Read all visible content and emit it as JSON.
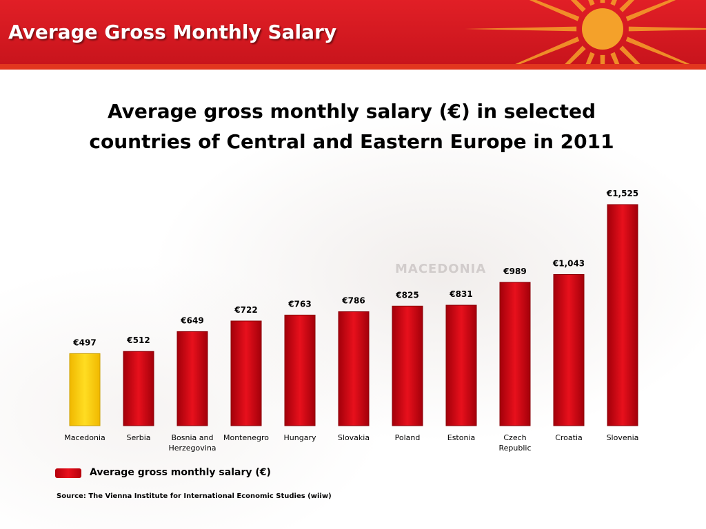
{
  "header": {
    "title": "Average Gross Monthly Salary"
  },
  "colors": {
    "header_red": "#d51920",
    "bar_red": "#d80510",
    "highlight_yellow": "#ffcc00",
    "sun_orange": "#f4a12a"
  },
  "chart_data": {
    "type": "bar",
    "title": "Average gross monthly salary (€) in selected countries of Central and Eastern Europe in 2011",
    "title_lines": [
      "Average gross monthly salary (€) in selected",
      "countries of Central and Eastern Europe in 2011"
    ],
    "categories": [
      "Macedonia",
      "Serbia",
      "Bosnia and Herzegovina",
      "Montenegro",
      "Hungary",
      "Slovakia",
      "Poland",
      "Estonia",
      "Czech Republic",
      "Croatia",
      "Slovenia"
    ],
    "category_lines": [
      [
        "Macedonia"
      ],
      [
        "Serbia"
      ],
      [
        "Bosnia and",
        "Herzegovina"
      ],
      [
        "Montenegro"
      ],
      [
        "Hungary"
      ],
      [
        "Slovakia"
      ],
      [
        "Poland"
      ],
      [
        "Estonia"
      ],
      [
        "Czech",
        "Republic"
      ],
      [
        "Croatia"
      ],
      [
        "Slovenia"
      ]
    ],
    "series": [
      {
        "name": "Average gross monthly salary (€)",
        "values": [
          497,
          512,
          649,
          722,
          763,
          786,
          825,
          831,
          989,
          1043,
          1525
        ]
      }
    ],
    "data_labels": [
      "€497",
      "€512",
      "€649",
      "€722",
      "€763",
      "€786",
      "€825",
      "€831",
      "€989",
      "€1,043",
      "€1,525"
    ],
    "highlight_category": "Macedonia",
    "ylim": [
      0,
      1525
    ],
    "grid": false,
    "legend_position": "bottom-left"
  },
  "legend": {
    "label": "Average gross monthly salary (€)"
  },
  "source": {
    "prefix": "Source:",
    "text": "The Vienna Institute for International Economic Studies (wiiw)"
  },
  "map_label": "MACEDONIA"
}
